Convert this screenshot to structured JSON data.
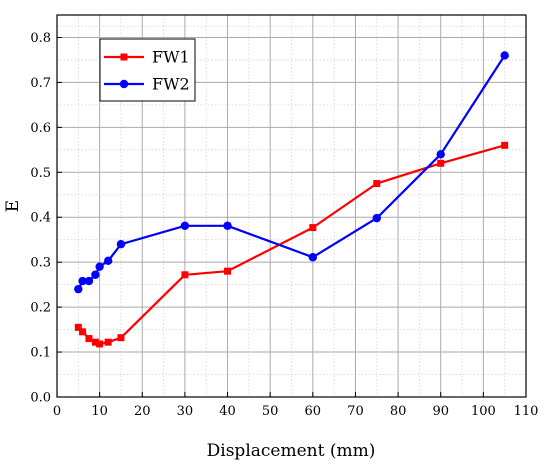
{
  "chart_data": {
    "type": "line",
    "xlabel": "Displacement (mm)",
    "ylabel": "E",
    "xlim": [
      0,
      110
    ],
    "ylim": [
      0,
      0.85
    ],
    "xticks": [
      0,
      10,
      20,
      30,
      40,
      50,
      60,
      70,
      80,
      90,
      100,
      110
    ],
    "yticks": [
      0.0,
      0.1,
      0.2,
      0.3,
      0.4,
      0.5,
      0.6,
      0.7,
      0.8
    ],
    "ytick_labels": [
      "0.0",
      "0.1",
      "0.2",
      "0.3",
      "0.4",
      "0.5",
      "0.6",
      "0.7",
      "0.8"
    ],
    "grid": true,
    "legend_position": "top-left",
    "series": [
      {
        "name": "FW1",
        "color": "#ff0000",
        "marker": "square",
        "x": [
          5,
          6,
          7.5,
          9,
          10,
          12,
          15,
          30,
          40,
          60,
          75,
          90,
          105
        ],
        "y": [
          0.155,
          0.145,
          0.13,
          0.122,
          0.118,
          0.122,
          0.132,
          0.272,
          0.28,
          0.377,
          0.475,
          0.52,
          0.56
        ]
      },
      {
        "name": "FW2",
        "color": "#0000ff",
        "marker": "circle",
        "x": [
          5,
          6,
          7.5,
          9,
          10,
          12,
          15,
          30,
          40,
          60,
          75,
          90,
          105
        ],
        "y": [
          0.24,
          0.258,
          0.258,
          0.272,
          0.29,
          0.303,
          0.34,
          0.381,
          0.381,
          0.311,
          0.398,
          0.54,
          0.76
        ]
      }
    ]
  }
}
